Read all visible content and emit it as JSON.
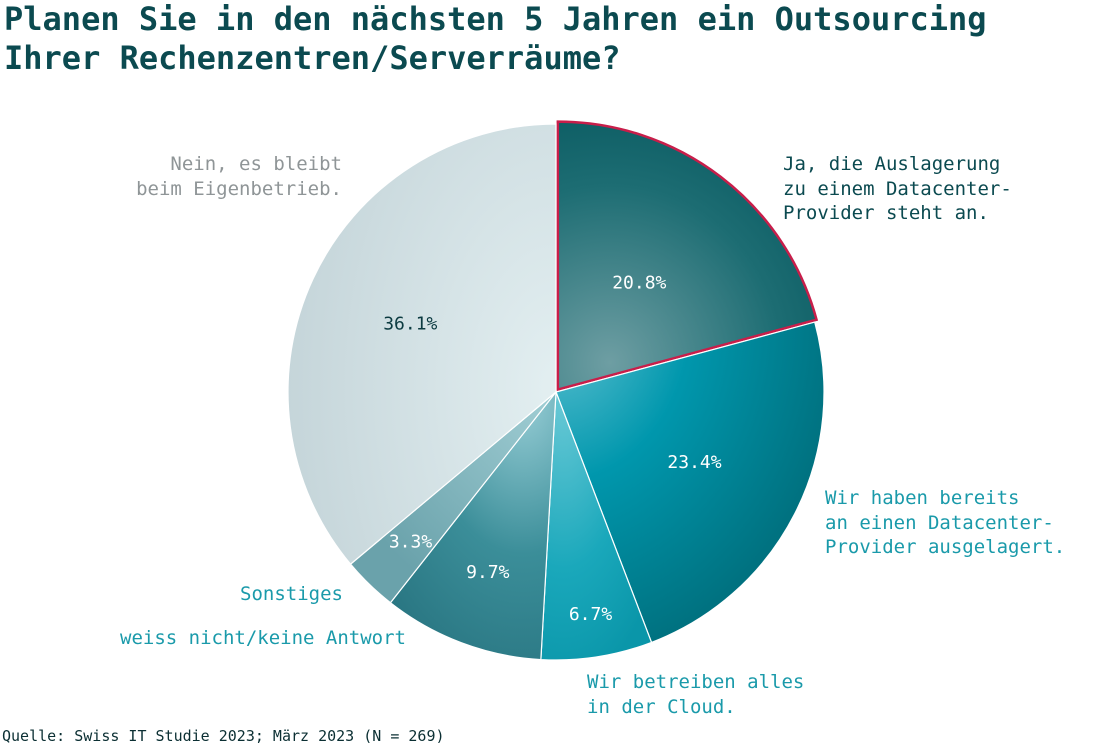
{
  "chart_data": {
    "type": "pie",
    "title_lines": [
      "Planen Sie in den nächsten 5 Jahren ein Outsourcing",
      "Ihrer Rechenzentren/Serverräume?"
    ],
    "slices": [
      {
        "value": 20.8,
        "value_label": "20.8%",
        "label_lines": [
          "Ja, die Auslagerung",
          "zu einem Datacenter-",
          "Provider steht an."
        ],
        "color": "#0b5f66",
        "highlight_color": "#c81e4a",
        "label_color": "#0b4a50",
        "value_color": "#ffffff"
      },
      {
        "value": 23.4,
        "value_label": "23.4%",
        "label_lines": [
          "Wir haben bereits",
          "an einen Datacenter-",
          "Provider ausgelagert."
        ],
        "color": "#00889c",
        "label_color": "#1a9aaa",
        "value_color": "#ffffff"
      },
      {
        "value": 6.7,
        "value_label": "6.7%",
        "label_lines": [
          "Wir betreiben alles",
          "in der Cloud."
        ],
        "color": "#1ea6ba",
        "label_color": "#1a9aaa",
        "value_color": "#ffffff"
      },
      {
        "value": 9.7,
        "value_label": "9.7%",
        "label_lines": [
          "weiss nicht/keine Antwort"
        ],
        "color": "#3f8f9a",
        "label_color": "#1a9aaa",
        "value_color": "#ffffff"
      },
      {
        "value": 3.3,
        "value_label": "3.3%",
        "label_lines": [
          "Sonstiges"
        ],
        "color": "#6faab3",
        "label_color": "#1a9aaa",
        "value_color": "#ffffff"
      },
      {
        "value": 36.1,
        "value_label": "36.1%",
        "label_lines": [
          "Nein, es bleibt",
          "beim Eigenbetrieb."
        ],
        "color": "#d3e2e6",
        "label_color": "#8f9597",
        "value_color": "#0b3a40"
      }
    ]
  },
  "source": "Quelle: Swiss IT Studie 2023; März 2023 (N = 269)"
}
